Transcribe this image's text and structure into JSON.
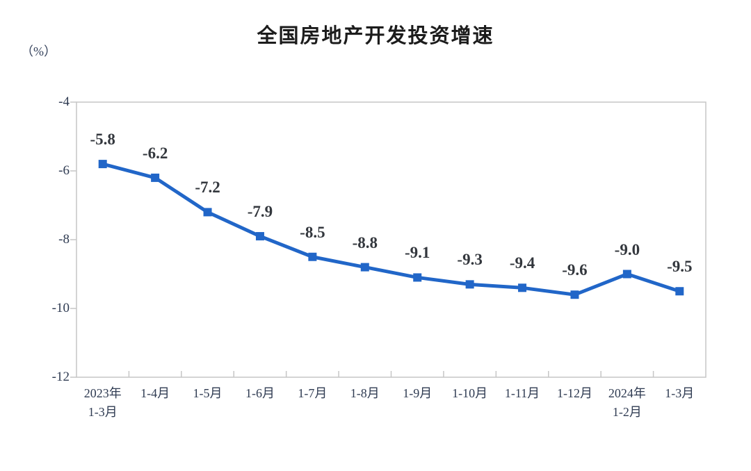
{
  "chart_data": {
    "type": "line",
    "title": "全国房地产开发投资增速",
    "unit_label": "（%）",
    "categories": [
      "2023年\n1-3月",
      "1-4月",
      "1-5月",
      "1-6月",
      "1-7月",
      "1-8月",
      "1-9月",
      "1-10月",
      "1-11月",
      "1-12月",
      "2024年\n1-2月",
      "1-3月"
    ],
    "values": [
      -5.8,
      -6.2,
      -7.2,
      -7.9,
      -8.5,
      -8.8,
      -9.1,
      -9.3,
      -9.4,
      -9.6,
      -9.0,
      -9.5
    ],
    "data_labels": [
      "-5.8",
      "-6.2",
      "-7.2",
      "-7.9",
      "-8.5",
      "-8.8",
      "-9.1",
      "-9.3",
      "-9.4",
      "-9.6",
      "-9.0",
      "-9.5"
    ],
    "xlabel": "",
    "ylabel": "（%）",
    "ylim": [
      -12,
      -4
    ],
    "y_ticks": [
      -4,
      -6,
      -8,
      -10,
      -12
    ],
    "y_tick_labels": [
      "-4",
      "-6",
      "-8",
      "-10",
      "-12"
    ],
    "grid": false,
    "legend_position": "none",
    "line_color": "#2166C8",
    "marker": "square",
    "marker_color": "#2166C8",
    "frame_color": "#c6c6c6"
  }
}
